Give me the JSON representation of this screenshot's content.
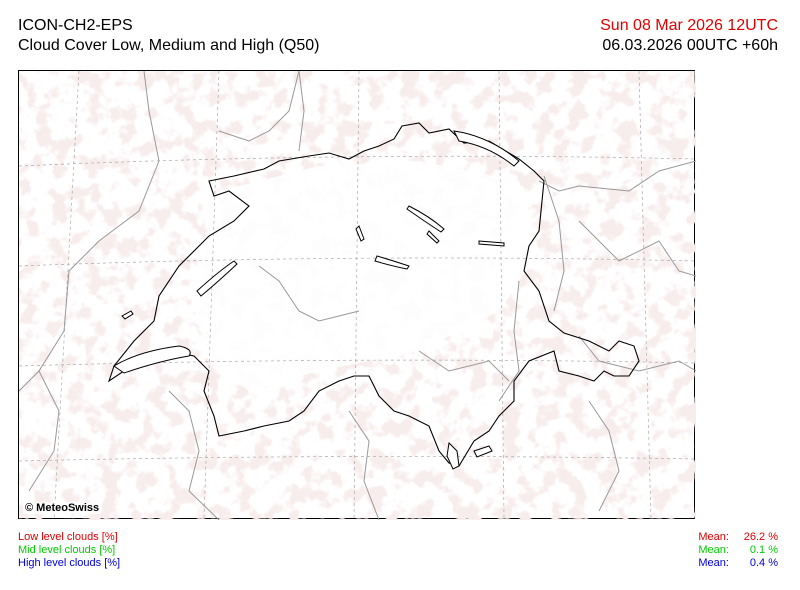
{
  "header": {
    "model": "ICON-CH2-EPS",
    "product": "Cloud Cover Low, Medium and High (Q50)",
    "valid_time": "Sun 08 Mar 2026 12UTC",
    "run_time": "06.03.2026 00UTC +60h"
  },
  "map": {
    "copyright": "© MeteoSwiss",
    "cloud_color": "#f0d8d8",
    "border_color": "#000000",
    "outer_border_color": "#999999",
    "grid_color": "#aaaaaa"
  },
  "legend": {
    "low_label": "Low level clouds [%]",
    "mid_label": "Mid level clouds [%]",
    "high_label": "High level clouds [%]",
    "low_mean_label": "Mean:",
    "low_mean_value": "26.2 %",
    "mid_mean_label": "Mean:",
    "mid_mean_value": "0.1 %",
    "high_mean_label": "Mean:",
    "high_mean_value": "0.4 %",
    "low_color": "#e00000",
    "mid_color": "#00cc00",
    "high_color": "#0000dd"
  }
}
